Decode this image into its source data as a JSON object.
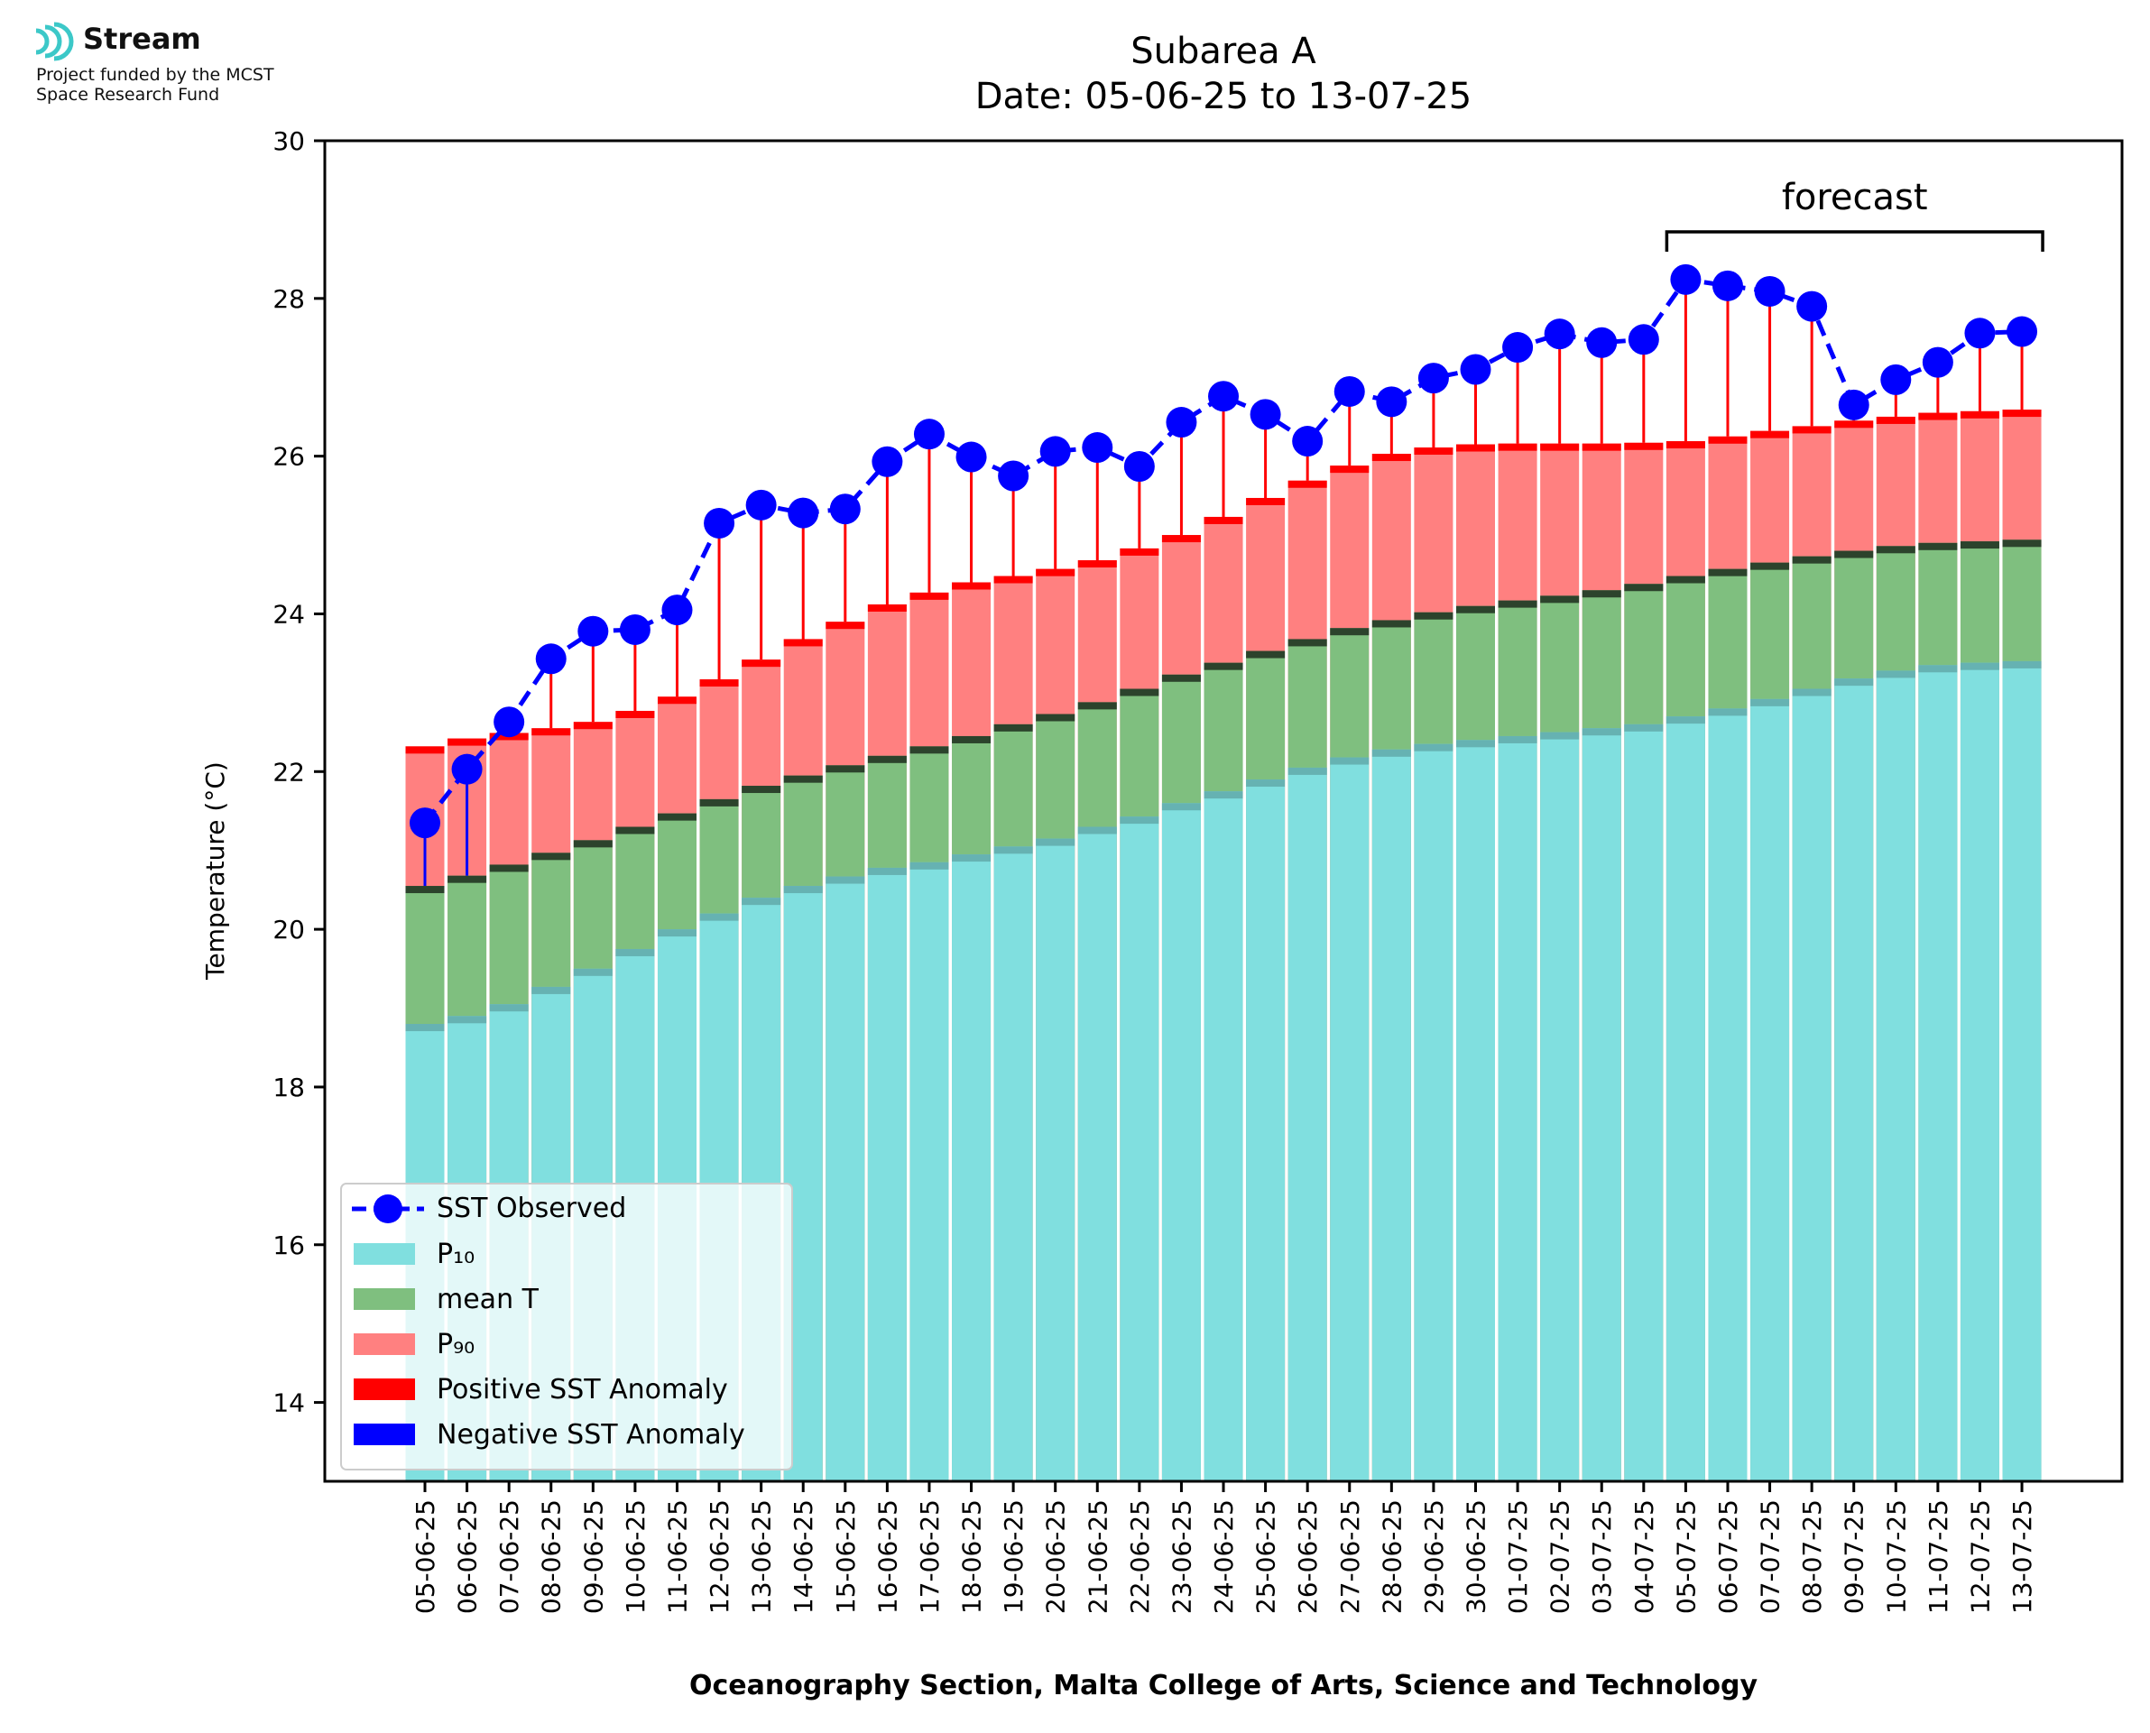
{
  "logo": {
    "name": "Stream",
    "line1": "Project funded by the MCST",
    "line2": "Space Research Fund",
    "color": "#3cc8c8"
  },
  "chart_data": {
    "type": "bar",
    "title": "Subarea A",
    "subtitle": "Date: 05-06-25 to 13-07-25",
    "xlabel": "Oceanography Section, Malta College of Arts, Science and Technology",
    "ylabel": "Temperature (°C)",
    "ylim": [
      13,
      30
    ],
    "yticks": [
      14,
      16,
      18,
      20,
      22,
      24,
      26,
      28,
      30
    ],
    "grid": false,
    "legend_position": "bottom-left",
    "forecast_label": "forecast",
    "forecast_range": [
      "05-07-25",
      "13-07-25"
    ],
    "categories": [
      "05-06-25",
      "06-06-25",
      "07-06-25",
      "08-06-25",
      "09-06-25",
      "10-06-25",
      "11-06-25",
      "12-06-25",
      "13-06-25",
      "14-06-25",
      "15-06-25",
      "16-06-25",
      "17-06-25",
      "18-06-25",
      "19-06-25",
      "20-06-25",
      "21-06-25",
      "22-06-25",
      "23-06-25",
      "24-06-25",
      "25-06-25",
      "26-06-25",
      "27-06-25",
      "28-06-25",
      "29-06-25",
      "30-06-25",
      "01-07-25",
      "02-07-25",
      "03-07-25",
      "04-07-25",
      "05-07-25",
      "06-07-25",
      "07-07-25",
      "08-07-25",
      "09-07-25",
      "10-07-25",
      "11-07-25",
      "12-07-25",
      "13-07-25"
    ],
    "series": [
      {
        "name": "SST Observed",
        "color": "#0000ff",
        "values": [
          21.35,
          22.03,
          22.63,
          23.43,
          23.78,
          23.8,
          24.05,
          25.15,
          25.38,
          25.28,
          25.33,
          25.93,
          26.28,
          25.99,
          25.75,
          26.06,
          26.11,
          25.87,
          26.43,
          26.76,
          26.53,
          26.19,
          26.82,
          26.69,
          26.99,
          27.1,
          27.38,
          27.55,
          27.44,
          27.48,
          28.24,
          28.16,
          28.09,
          27.9,
          26.65,
          26.97,
          27.19,
          27.56,
          27.58
        ]
      },
      {
        "name": "P₁₀",
        "color": "#80dfdf",
        "values": [
          18.8,
          18.9,
          19.05,
          19.27,
          19.5,
          19.75,
          20.0,
          20.2,
          20.4,
          20.55,
          20.67,
          20.78,
          20.85,
          20.95,
          21.05,
          21.15,
          21.3,
          21.43,
          21.6,
          21.75,
          21.9,
          22.05,
          22.18,
          22.28,
          22.35,
          22.4,
          22.45,
          22.5,
          22.55,
          22.6,
          22.7,
          22.8,
          22.92,
          23.05,
          23.18,
          23.28,
          23.35,
          23.38,
          23.4
        ]
      },
      {
        "name": "mean T",
        "color": "#7fbf7f",
        "values": [
          20.55,
          20.68,
          20.82,
          20.97,
          21.13,
          21.3,
          21.47,
          21.65,
          21.82,
          21.95,
          22.08,
          22.2,
          22.32,
          22.45,
          22.6,
          22.73,
          22.88,
          23.05,
          23.23,
          23.38,
          23.53,
          23.68,
          23.82,
          23.92,
          24.02,
          24.1,
          24.17,
          24.23,
          24.3,
          24.38,
          24.48,
          24.57,
          24.65,
          24.73,
          24.8,
          24.86,
          24.9,
          24.92,
          24.94
        ]
      },
      {
        "name": "P₉₀",
        "color": "#ff8080",
        "values": [
          22.32,
          22.42,
          22.49,
          22.55,
          22.63,
          22.77,
          22.95,
          23.17,
          23.42,
          23.68,
          23.9,
          24.12,
          24.27,
          24.4,
          24.48,
          24.57,
          24.68,
          24.83,
          25.0,
          25.23,
          25.47,
          25.69,
          25.88,
          26.03,
          26.11,
          26.15,
          26.16,
          26.16,
          26.16,
          26.17,
          26.19,
          26.25,
          26.32,
          26.38,
          26.45,
          26.5,
          26.55,
          26.57,
          26.59
        ]
      },
      {
        "name": "Positive SST Anomaly",
        "color": "#ff0000"
      },
      {
        "name": "Negative SST Anomaly",
        "color": "#0000ff"
      }
    ]
  }
}
